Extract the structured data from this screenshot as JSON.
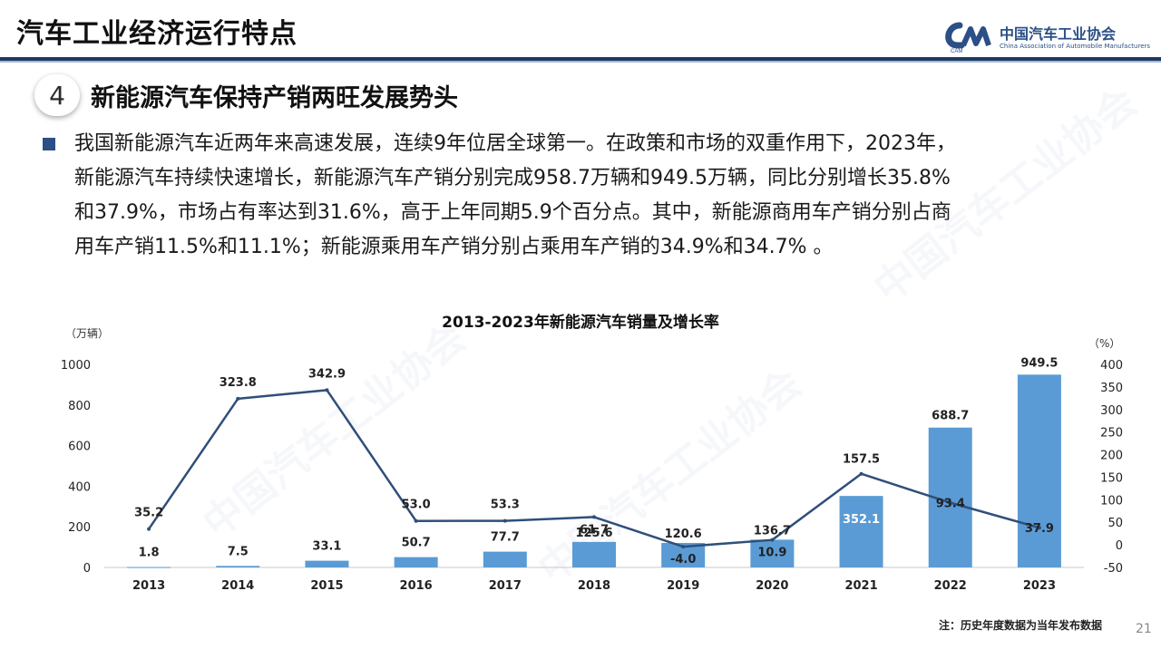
{
  "header": {
    "title": "汽车工业经济运行特点",
    "logo_name": "中国汽车工业协会",
    "logo_en": "China Association of Automobile Manufacturers",
    "logo_mark": "CAM"
  },
  "section": {
    "number": "4",
    "title": "新能源汽车保持产销两旺发展势头"
  },
  "paragraph": {
    "lines": [
      "我国新能源汽车近两年来高速发展，连续9年位居全球第一。在政策和市场的双重作用下，2023年，",
      "新能源汽车持续快速增长，新能源汽车产销分别完成958.7万辆和949.5万辆，同比分别增长35.8%",
      "和37.9%，市场占有率达到31.6%，高于上年同期5.9个百分点。其中，新能源商用车产销分别占商",
      "用车产销11.5%和11.1%；新能源乘用车产销分别占乘用车产销的34.9%和34.7% 。"
    ]
  },
  "chart_data": {
    "type": "bar",
    "title": "2013-2023年新能源汽车销量及增长率",
    "left_unit": "（万辆）",
    "right_unit": "（%）",
    "categories": [
      "2013",
      "2014",
      "2015",
      "2016",
      "2017",
      "2018",
      "2019",
      "2020",
      "2021",
      "2022",
      "2023"
    ],
    "series": [
      {
        "values": [
          1.8,
          7.5,
          33.1,
          50.7,
          77.7,
          125.6,
          120.6,
          136.7,
          352.1,
          688.7,
          949.5
        ],
        "color": "#5b9bd5",
        "axis": "left",
        "kind": "bar"
      },
      {
        "values": [
          35.2,
          323.8,
          342.9,
          53.0,
          53.3,
          61.7,
          -4.0,
          10.9,
          157.5,
          93.4,
          37.9
        ],
        "color": "#2f4f7a",
        "axis": "right",
        "kind": "line"
      }
    ],
    "left_ticks": [
      "0",
      "200",
      "400",
      "600",
      "800",
      "1000"
    ],
    "right_ticks": [
      "-50",
      "0",
      "50",
      "100",
      "150",
      "200",
      "250",
      "300",
      "350",
      "400"
    ],
    "ylim_left": [
      0,
      1000
    ],
    "ylim_right": [
      -50,
      400
    ],
    "note": "注：历史年度数据为当年发布数据"
  },
  "page_number": "21"
}
